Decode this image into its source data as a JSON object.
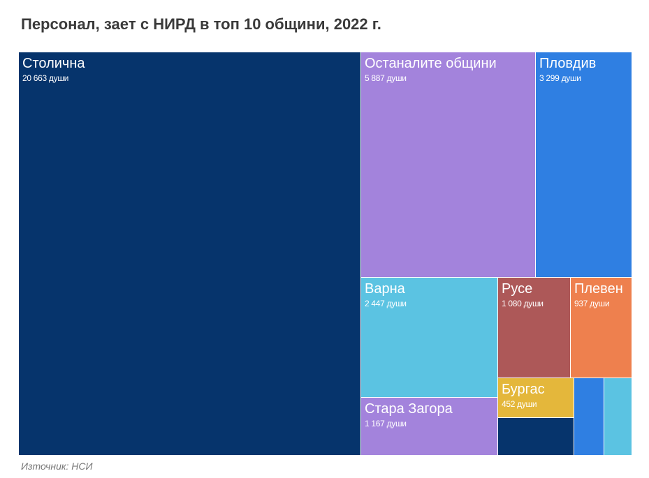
{
  "title": "Персонал, заeт с НИРД в топ 10 общини, 2022 г.",
  "source": "Източник: НСИ",
  "unit_suffix": "души",
  "chart_data": {
    "type": "treemap",
    "title": "Персонал, заeт с НИРД в топ 10 общини, 2022 г.",
    "unit": "души",
    "items": [
      {
        "name": "Столична",
        "value": 20663,
        "label": "20 663 души",
        "color": "#06346c"
      },
      {
        "name": "Останалите общини",
        "value": 5887,
        "label": "5 887 души",
        "color": "#a383dc"
      },
      {
        "name": "Пловдив",
        "value": 3299,
        "label": "3 299 души",
        "color": "#2f7fe2"
      },
      {
        "name": "Варна",
        "value": 2447,
        "label": "2 447 души",
        "color": "#5bc3e2"
      },
      {
        "name": "Стара Загора",
        "value": 1167,
        "label": "1 167 души",
        "color": "#a383dc"
      },
      {
        "name": "Русе",
        "value": 1080,
        "label": "1 080 души",
        "color": "#ad5858"
      },
      {
        "name": "Плевен",
        "value": 937,
        "label": "937 души",
        "color": "#ee804e"
      },
      {
        "name": "Бургас",
        "value": 452,
        "label": "452 души",
        "color": "#e4b73b"
      },
      {
        "name": "",
        "value": 380,
        "label": "",
        "color": "#06346c"
      },
      {
        "name": "",
        "value": 300,
        "label": "",
        "color": "#2f7fe2"
      },
      {
        "name": "",
        "value": 270,
        "label": "",
        "color": "#5bc3e2"
      }
    ]
  }
}
